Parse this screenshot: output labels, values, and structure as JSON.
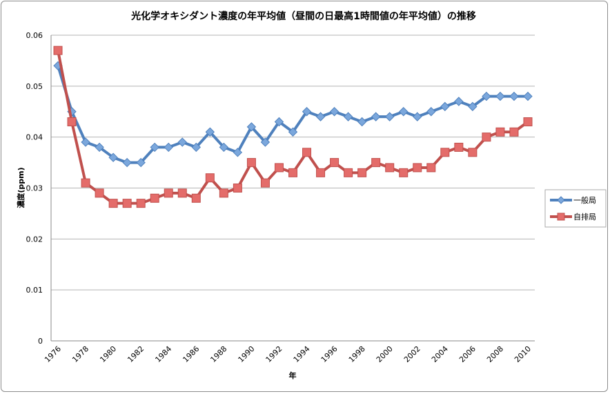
{
  "chart_data": {
    "type": "line",
    "title": "光化学オキシダント濃度の年平均値（昼間の日最高1時間値の年平均値）の推移",
    "xlabel": "年",
    "ylabel": "濃度(ppm)",
    "ylim": [
      0,
      0.06
    ],
    "yticks": [
      "0",
      "0.01",
      "0.02",
      "0.03",
      "0.04",
      "0.05",
      "0.06"
    ],
    "grid": true,
    "legend_position": "right",
    "x": [
      1976,
      1977,
      1978,
      1979,
      1980,
      1981,
      1982,
      1983,
      1984,
      1985,
      1986,
      1987,
      1988,
      1989,
      1990,
      1991,
      1992,
      1993,
      1994,
      1995,
      1996,
      1997,
      1998,
      1999,
      2000,
      2001,
      2002,
      2003,
      2004,
      2005,
      2006,
      2007,
      2008,
      2009,
      2010
    ],
    "xtick_labels": [
      "1976",
      "1978",
      "1980",
      "1982",
      "1984",
      "1986",
      "1988",
      "1990",
      "1992",
      "1994",
      "1996",
      "1998",
      "2000",
      "2002",
      "2004",
      "2006",
      "2008",
      "2010"
    ],
    "series": [
      {
        "name": "一般局",
        "color": "#4f81bd",
        "marker": "diamond",
        "values": [
          0.054,
          0.045,
          0.039,
          0.038,
          0.036,
          0.035,
          0.035,
          0.038,
          0.038,
          0.039,
          0.038,
          0.041,
          0.038,
          0.037,
          0.042,
          0.039,
          0.043,
          0.041,
          0.045,
          0.044,
          0.045,
          0.044,
          0.043,
          0.044,
          0.044,
          0.045,
          0.044,
          0.045,
          0.046,
          0.047,
          0.046,
          0.048,
          0.048,
          0.048,
          0.048
        ]
      },
      {
        "name": "自排局",
        "color": "#c0504d",
        "marker": "square",
        "values": [
          0.057,
          0.043,
          0.031,
          0.029,
          0.027,
          0.027,
          0.027,
          0.028,
          0.029,
          0.029,
          0.028,
          0.032,
          0.029,
          0.03,
          0.035,
          0.031,
          0.034,
          0.033,
          0.037,
          0.033,
          0.035,
          0.033,
          0.033,
          0.035,
          0.034,
          0.033,
          0.034,
          0.034,
          0.037,
          0.038,
          0.037,
          0.04,
          0.041,
          0.041,
          0.043
        ]
      }
    ]
  }
}
